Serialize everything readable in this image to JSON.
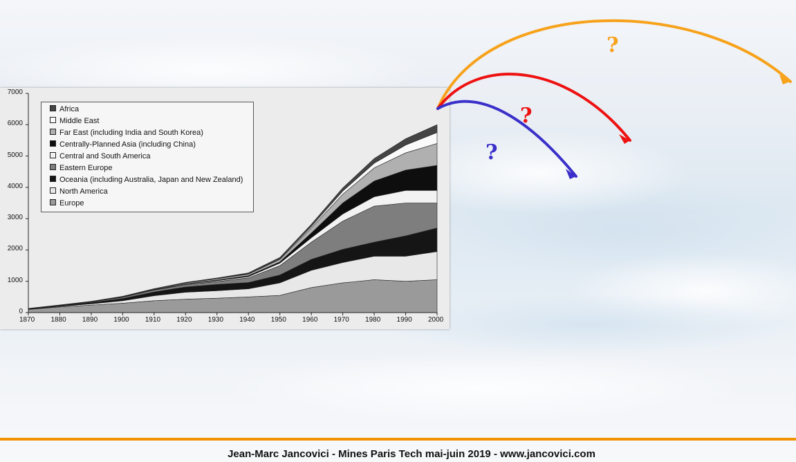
{
  "chart_data": {
    "type": "area",
    "stacked": true,
    "x": [
      1870,
      1880,
      1890,
      1900,
      1910,
      1920,
      1930,
      1940,
      1950,
      1960,
      1970,
      1980,
      1990,
      2000
    ],
    "xlim": [
      1870,
      2000
    ],
    "ylim": [
      0,
      7000
    ],
    "yticks": [
      0,
      1000,
      2000,
      3000,
      4000,
      5000,
      6000,
      7000
    ],
    "xticks": [
      1870,
      1880,
      1890,
      1900,
      1910,
      1920,
      1930,
      1940,
      1950,
      1960,
      1970,
      1980,
      1990,
      2000
    ],
    "grid": false,
    "legend_position": "top-left",
    "series": [
      {
        "name": "Europe",
        "color": "#9a9a9a",
        "values": [
          100,
          180,
          240,
          300,
          380,
          430,
          460,
          500,
          550,
          800,
          950,
          1050,
          1000,
          1050
        ]
      },
      {
        "name": "North America",
        "color": "#e8e8e8",
        "values": [
          10,
          20,
          40,
          80,
          160,
          220,
          240,
          260,
          400,
          550,
          650,
          750,
          800,
          900
        ]
      },
      {
        "name": "Oceania (including Australia, Japan and New Zealand)",
        "color": "#151515",
        "values": [
          10,
          20,
          40,
          70,
          120,
          170,
          200,
          200,
          250,
          350,
          420,
          450,
          650,
          750
        ]
      },
      {
        "name": "Eastern Europe",
        "color": "#7e7e7e",
        "values": [
          5,
          10,
          20,
          40,
          60,
          70,
          90,
          150,
          300,
          550,
          900,
          1150,
          1050,
          800
        ]
      },
      {
        "name": "Central and South America",
        "color": "#f2f2f2",
        "values": [
          0,
          0,
          5,
          5,
          10,
          20,
          30,
          40,
          80,
          140,
          230,
          300,
          400,
          400
        ]
      },
      {
        "name": "Centrally-Planned Asia (including China)",
        "color": "#0e0e0e",
        "values": [
          0,
          0,
          0,
          5,
          5,
          10,
          20,
          30,
          40,
          150,
          350,
          500,
          650,
          800
        ]
      },
      {
        "name": "Far East (including India and South Korea)",
        "color": "#b0b0b0",
        "values": [
          5,
          10,
          10,
          15,
          20,
          30,
          40,
          50,
          80,
          160,
          280,
          420,
          550,
          700
        ]
      },
      {
        "name": "Middle East",
        "color": "#fafafa",
        "values": [
          0,
          0,
          0,
          0,
          0,
          0,
          5,
          10,
          20,
          50,
          100,
          150,
          250,
          350
        ]
      },
      {
        "name": "Africa",
        "color": "#444444",
        "values": [
          5,
          5,
          5,
          5,
          10,
          15,
          20,
          30,
          40,
          70,
          100,
          150,
          200,
          250
        ]
      }
    ]
  },
  "legend_items": [
    {
      "label": "Africa",
      "color": "#444444"
    },
    {
      "label": "Middle East",
      "color": "#fafafa"
    },
    {
      "label": "Far East (including India and South Korea)",
      "color": "#b0b0b0"
    },
    {
      "label": "Centrally-Planned Asia (including China)",
      "color": "#0e0e0e"
    },
    {
      "label": "Central and South America",
      "color": "#f2f2f2"
    },
    {
      "label": "Eastern Europe",
      "color": "#7e7e7e"
    },
    {
      "label": "Oceania (including Australia, Japan and New Zealand)",
      "color": "#151515"
    },
    {
      "label": "North America",
      "color": "#e8e8e8"
    },
    {
      "label": "Europe",
      "color": "#9a9a9a"
    }
  ],
  "scenario_arrows": [
    {
      "name": "high",
      "color": "#f7a21b",
      "label": "?"
    },
    {
      "name": "medium",
      "color": "#ee1111",
      "label": "?"
    },
    {
      "name": "low",
      "color": "#3a2fc9",
      "label": "?"
    }
  ],
  "footer": {
    "text": "Jean-Marc Jancovici - Mines Paris Tech mai-juin 2019 - www.jancovici.com"
  }
}
